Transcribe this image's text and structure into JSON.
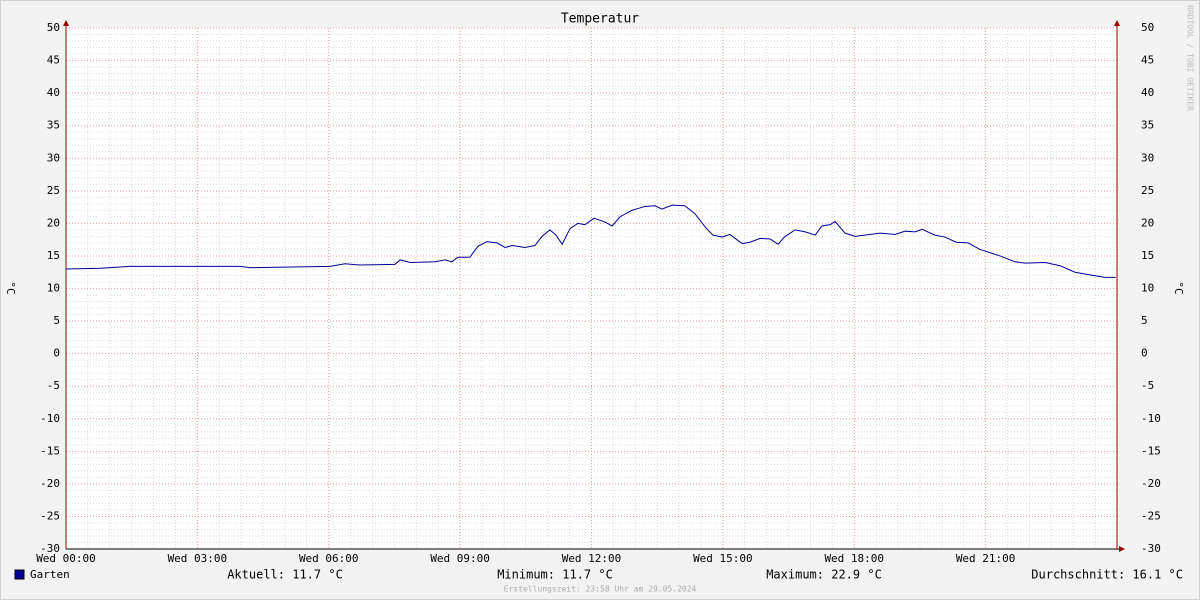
{
  "chart_data": {
    "type": "line",
    "title": "Temperatur",
    "y_label": "°C",
    "watermark": "RRDTOOL / TOBI OETIKER",
    "xlim": [
      0,
      24
    ],
    "xticks": [
      {
        "value": 0,
        "label": "Wed 00:00"
      },
      {
        "value": 3,
        "label": "Wed 03:00"
      },
      {
        "value": 6,
        "label": "Wed 06:00"
      },
      {
        "value": 9,
        "label": "Wed 09:00"
      },
      {
        "value": 12,
        "label": "Wed 12:00"
      },
      {
        "value": 15,
        "label": "Wed 15:00"
      },
      {
        "value": 18,
        "label": "Wed 18:00"
      },
      {
        "value": 21,
        "label": "Wed 21:00"
      }
    ],
    "ylim": [
      -30,
      50
    ],
    "yticks": [
      -30,
      -25,
      -20,
      -15,
      -10,
      -5,
      0,
      5,
      10,
      15,
      20,
      25,
      30,
      35,
      40,
      45,
      50
    ],
    "grid": true,
    "x": [
      0,
      0.78,
      1.46,
      3.97,
      4.2,
      6.03,
      6.37,
      6.71,
      7.51,
      7.63,
      7.86,
      8.43,
      8.66,
      8.81,
      8.95,
      9.22,
      9.41,
      9.61,
      9.84,
      10.03,
      10.19,
      10.48,
      10.71,
      10.87,
      11.05,
      11.19,
      11.33,
      11.51,
      11.69,
      11.85,
      12.06,
      12.31,
      12.47,
      12.65,
      12.92,
      13.22,
      13.45,
      13.61,
      13.84,
      14.13,
      14.36,
      14.59,
      14.77,
      14.98,
      15.16,
      15.44,
      15.62,
      15.85,
      16.08,
      16.26,
      16.42,
      16.65,
      16.88,
      17.11,
      17.26,
      17.45,
      17.56,
      17.79,
      18.02,
      18.59,
      18.93,
      19.16,
      19.39,
      19.55,
      19.84,
      20.07,
      20.33,
      20.6,
      20.87,
      21.33,
      21.67,
      21.9,
      22.36,
      22.7,
      23.04,
      23.38,
      23.72,
      23.97
    ],
    "series": [
      {
        "name": "Garten",
        "color": "#000099",
        "values": [
          13.0,
          13.1,
          13.4,
          13.4,
          13.2,
          13.4,
          13.8,
          13.6,
          13.7,
          14.4,
          14.0,
          14.1,
          14.4,
          14.1,
          14.8,
          14.8,
          16.5,
          17.2,
          17.0,
          16.3,
          16.6,
          16.3,
          16.6,
          18.0,
          19.0,
          18.2,
          16.8,
          19.2,
          20.0,
          19.8,
          20.8,
          20.2,
          19.6,
          21.0,
          22.0,
          22.6,
          22.7,
          22.2,
          22.8,
          22.7,
          21.5,
          19.5,
          18.2,
          17.9,
          18.3,
          16.9,
          17.1,
          17.7,
          17.6,
          16.8,
          18.0,
          19.0,
          18.7,
          18.2,
          19.6,
          19.8,
          20.3,
          18.5,
          18.0,
          18.5,
          18.3,
          18.8,
          18.7,
          19.1,
          18.2,
          17.9,
          17.1,
          17.0,
          16.0,
          15.0,
          14.1,
          13.9,
          14.0,
          13.5,
          12.5,
          12.1,
          11.7,
          11.7
        ]
      }
    ],
    "stats": [
      "Aktuell: 11.7 °C",
      "Minimum: 11.7 °C",
      "Maximum: 22.9 °C",
      "Durchschnitt: 16.1 °C"
    ],
    "footer": "Erstellungszeit: 23:58 Uhr am 29.05.2024"
  }
}
